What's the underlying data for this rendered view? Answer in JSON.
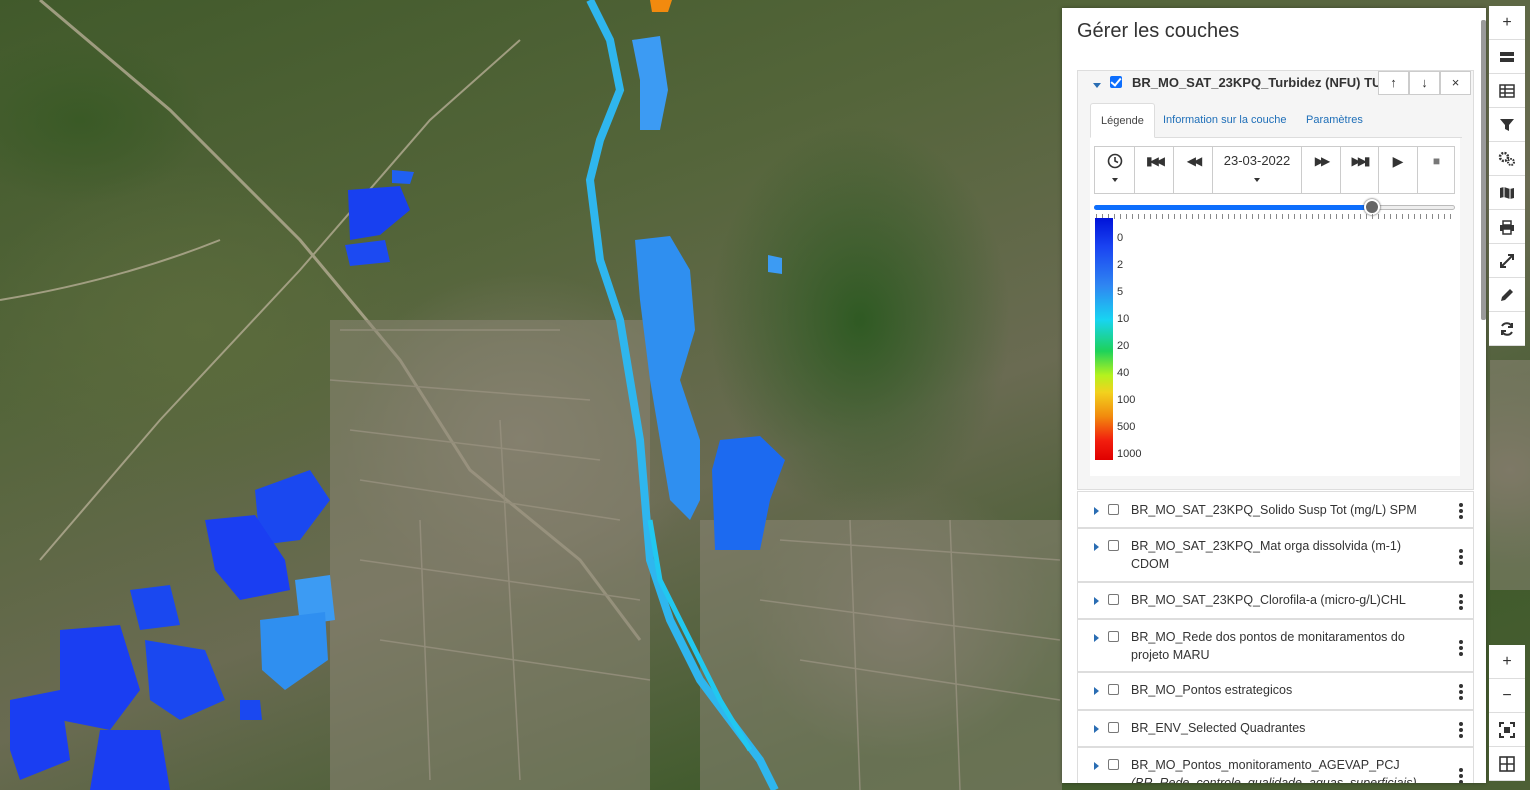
{
  "panel": {
    "title": "Gérer les couches",
    "active_layer": {
      "name": "BR_MO_SAT_23KPQ_Turbidez (NFU) TU",
      "checked": true,
      "buttons": {
        "up": "↑",
        "down": "↓",
        "close": "×"
      },
      "tabs": [
        "Légende",
        "Information sur la couche",
        "Paramètres"
      ],
      "active_tab": "Légende",
      "time_control": {
        "date": "23-03-2022",
        "slider_fraction": 0.77
      },
      "legend": {
        "labels": [
          "0",
          "2",
          "5",
          "10",
          "20",
          "40",
          "100",
          "500",
          "1000"
        ],
        "colors": [
          "#0013d9",
          "#1a44f2",
          "#2f86f2",
          "#18d4f2",
          "#1ed25a",
          "#b4f21e",
          "#f2a00e",
          "#f25a0e",
          "#e00000"
        ]
      }
    },
    "layers": [
      {
        "name": "BR_MO_SAT_23KPQ_Solido Susp Tot (mg/L) SPM",
        "checked": false
      },
      {
        "name": "BR_MO_SAT_23KPQ_Mat orga dissolvida (m-1) CDOM",
        "checked": false
      },
      {
        "name": "BR_MO_SAT_23KPQ_Clorofila-a (micro-g/L)CHL",
        "checked": false
      },
      {
        "name": "BR_MO_Rede dos pontos de monitaramentos do projeto MARU",
        "checked": false
      },
      {
        "name": "BR_MO_Pontos estrategicos",
        "checked": false
      },
      {
        "name": "BR_ENV_Selected Quadrantes",
        "checked": false
      },
      {
        "name": "BR_MO_Pontos_monitoramento_AGEVAP_PCJ",
        "subtitle": "(BR_Rede_controle_qualidade_aguas_superficiais)",
        "checked": false
      }
    ]
  },
  "toolbar": {
    "top": [
      "add-layer-icon",
      "layers-icon",
      "table-icon",
      "filter-icon",
      "settings-icon",
      "map-icon",
      "print-icon",
      "fullscreen-icon",
      "edit-icon",
      "refresh-icon"
    ],
    "bottom": [
      "zoom-in-icon",
      "zoom-out-icon",
      "fit-extent-icon",
      "grid-icon"
    ],
    "glyphs": {
      "add": "+",
      "zoom_in": "+",
      "zoom_out": "−"
    }
  }
}
